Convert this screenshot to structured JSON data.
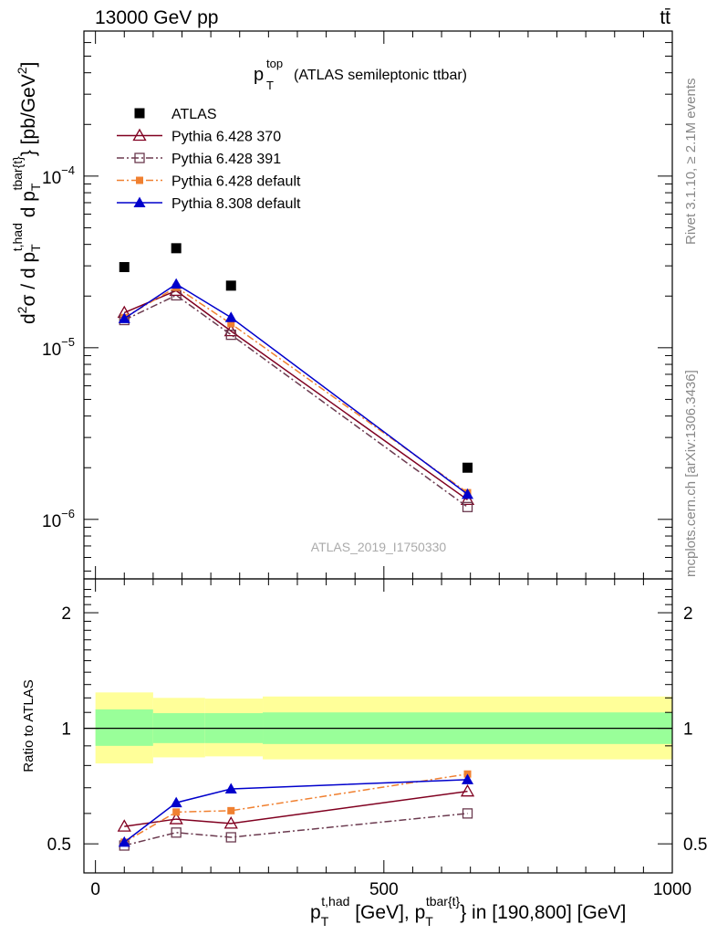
{
  "header": {
    "left": "13000 GeV pp",
    "right": "tt̄"
  },
  "side_labels": {
    "rivet": "Rivet 3.1.10, ≥ 2.1M events",
    "mcplots": "mcplots.cern.ch [arXiv:1306.3436]"
  },
  "watermark": "ATLAS_2019_I1750330",
  "chart_data": [
    {
      "type": "line",
      "panel": "main",
      "title_main": "p",
      "title_sub": "T",
      "title_sup": "top",
      "title_rest": "(ATLAS semileptonic ttbar)",
      "ylabel": {
        "part1": "d",
        "sup2": "2",
        "part2": "σ / d p",
        "sub_T1": "T",
        "sup_had": "t,had",
        "part3": " d p",
        "sub_T2": "T",
        "sup_tbar": "tbar{t}",
        "part4": "} [pb/GeV",
        "sup_2b": "2",
        "part5": "]"
      },
      "yscale": "log",
      "ylim": [
        4.5e-07,
        0.0007
      ],
      "xlim": [
        -20,
        1000
      ],
      "y_ticks": [
        {
          "value": 1e-06,
          "base": "10",
          "exp": "−6"
        },
        {
          "value": 1e-05,
          "base": "10",
          "exp": "−5"
        },
        {
          "value": 0.0001,
          "base": "10",
          "exp": "−4"
        }
      ],
      "legend_position": "top-left",
      "series": [
        {
          "name": "ATLAS",
          "marker": "square-filled",
          "color": "#000000",
          "line": "none",
          "x": [
            50,
            140,
            235,
            645
          ],
          "y": [
            2.95e-05,
            3.8e-05,
            2.3e-05,
            2e-06
          ]
        },
        {
          "name": "Pythia 6.428 370",
          "marker": "triangle-open",
          "color": "#800020",
          "line": "solid",
          "x": [
            50,
            140,
            235,
            645
          ],
          "y": [
            1.6e-05,
            2.15e-05,
            1.25e-05,
            1.3e-06
          ]
        },
        {
          "name": "Pythia 6.428 391",
          "marker": "square-open",
          "color": "#6b3a4f",
          "line": "dashdot",
          "x": [
            50,
            140,
            235,
            645
          ],
          "y": [
            1.45e-05,
            2.02e-05,
            1.19e-05,
            1.18e-06
          ]
        },
        {
          "name": "Pythia 6.428 default",
          "marker": "square-filled-small",
          "color": "#f08030",
          "line": "dashdot",
          "x": [
            50,
            140,
            235,
            645
          ],
          "y": [
            1.5e-05,
            2.25e-05,
            1.38e-05,
            1.43e-06
          ]
        },
        {
          "name": "Pythia 8.308 default",
          "marker": "triangle-filled",
          "color": "#0000cc",
          "line": "solid",
          "x": [
            50,
            140,
            235,
            645
          ],
          "y": [
            1.48e-05,
            2.35e-05,
            1.5e-05,
            1.4e-06
          ]
        }
      ]
    },
    {
      "type": "line",
      "panel": "ratio",
      "ylabel": "Ratio to ATLAS",
      "yscale": "log",
      "ylim": [
        0.42,
        2.45
      ],
      "xlim": [
        -20,
        1000
      ],
      "y_ticks": [
        {
          "value": 0.5,
          "label": "0.5"
        },
        {
          "value": 1,
          "label": "1"
        },
        {
          "value": 2,
          "label": "2"
        }
      ],
      "x_ticks": [
        {
          "value": 0,
          "label": "0"
        },
        {
          "value": 500,
          "label": "500"
        },
        {
          "value": 1000,
          "label": "1000"
        }
      ],
      "xlabel": {
        "part1": "p",
        "sub_T1": "T",
        "sup_had": "t,had",
        "part2": " [GeV], p",
        "sub_T2": "T",
        "sup_tbar": "tbar{t}",
        "part3": "} in [190,800] [GeV]"
      },
      "bands": [
        {
          "x0": 0,
          "x1": 100,
          "yellow": [
            0.81,
            1.24
          ],
          "green": [
            0.9,
            1.12
          ]
        },
        {
          "x0": 100,
          "x1": 190,
          "yellow": [
            0.84,
            1.2
          ],
          "green": [
            0.915,
            1.095
          ]
        },
        {
          "x0": 190,
          "x1": 290,
          "yellow": [
            0.845,
            1.195
          ],
          "green": [
            0.915,
            1.095
          ]
        },
        {
          "x0": 290,
          "x1": 1000,
          "yellow": [
            0.83,
            1.21
          ],
          "green": [
            0.91,
            1.1
          ]
        }
      ],
      "series": [
        {
          "name": "Pythia 6.428 370",
          "marker": "triangle-open",
          "color": "#800020",
          "line": "solid",
          "x": [
            50,
            140,
            235,
            645
          ],
          "y": [
            0.555,
            0.58,
            0.565,
            0.685
          ]
        },
        {
          "name": "Pythia 6.428 391",
          "marker": "square-open",
          "color": "#6b3a4f",
          "line": "dashdot",
          "x": [
            50,
            140,
            235,
            645
          ],
          "y": [
            0.495,
            0.535,
            0.52,
            0.6
          ]
        },
        {
          "name": "Pythia 6.428 default",
          "marker": "square-filled-small",
          "color": "#f08030",
          "line": "dashdot",
          "x": [
            50,
            140,
            235,
            645
          ],
          "y": [
            0.505,
            0.605,
            0.61,
            0.76
          ]
        },
        {
          "name": "Pythia 8.308 default",
          "marker": "triangle-filled",
          "color": "#0000cc",
          "line": "solid",
          "x": [
            50,
            140,
            235,
            645
          ],
          "y": [
            0.505,
            0.64,
            0.695,
            0.735
          ]
        }
      ]
    }
  ]
}
